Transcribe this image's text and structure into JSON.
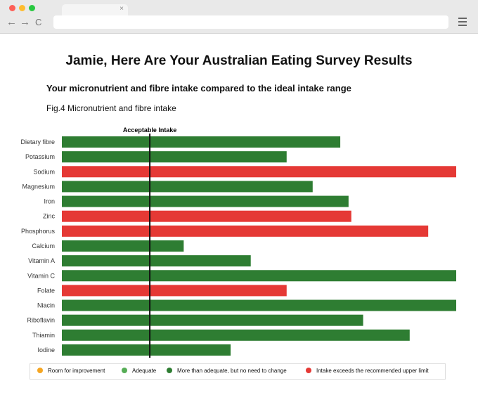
{
  "page": {
    "title": "Jamie, Here Are Your Australian Eating Survey Results",
    "subtitle": "Your micronutrient and fibre intake compared to the ideal intake range",
    "figure_caption": "Fig.4 Micronutrient and fibre intake"
  },
  "browser": {
    "tab_close": "×",
    "back_glyph": "←",
    "forward_glyph": "→",
    "reload_glyph": "C"
  },
  "chart_data": {
    "type": "bar",
    "orientation": "horizontal",
    "reference_line_label": "Acceptable Intake",
    "reference_line_value": 0.223,
    "xlim": [
      0,
      1
    ],
    "categories": [
      "Dietary fibre",
      "Potassium",
      "Sodium",
      "Magnesium",
      "Iron",
      "Zinc",
      "Phosphorus",
      "Calcium",
      "Vitamin A",
      "Vitamin C",
      "Folate",
      "Niacin",
      "Riboflavin",
      "Thiamin",
      "Iodine"
    ],
    "values": [
      0.706,
      0.57,
      1.0,
      0.636,
      0.727,
      0.734,
      0.929,
      0.309,
      0.479,
      1.0,
      0.57,
      1.0,
      0.764,
      0.882,
      0.428
    ],
    "status": [
      "more_than_adequate",
      "more_than_adequate",
      "exceeds",
      "more_than_adequate",
      "more_than_adequate",
      "exceeds",
      "exceeds",
      "more_than_adequate",
      "more_than_adequate",
      "more_than_adequate",
      "exceeds",
      "more_than_adequate",
      "more_than_adequate",
      "more_than_adequate",
      "more_than_adequate"
    ],
    "legend": [
      {
        "key": "room",
        "label": "Room for improvement",
        "color": "#f5a623"
      },
      {
        "key": "adequate",
        "label": "Adequate",
        "color": "#56ad56"
      },
      {
        "key": "more_than_adequate",
        "label": "More than adequate, but no need to change",
        "color": "#2e7d32"
      },
      {
        "key": "exceeds",
        "label": "Intake exceeds the recommended upper limit",
        "color": "#e53935"
      }
    ],
    "colors": {
      "more_than_adequate": "#2e7d32",
      "exceeds": "#e53935",
      "reference_line": "#111111"
    },
    "grid": false
  }
}
